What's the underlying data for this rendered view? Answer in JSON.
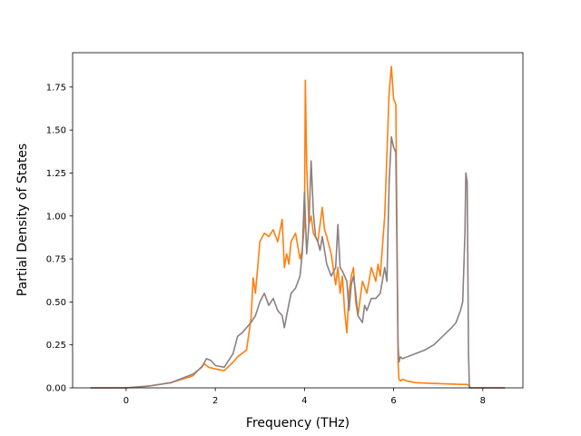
{
  "chart_data": {
    "type": "line",
    "title": "",
    "xlabel": "Frequency (THz)",
    "ylabel": "Partial Density of States",
    "xlim": [
      -1.2,
      8.9
    ],
    "ylim": [
      0,
      1.95
    ],
    "xticks": [
      0,
      2,
      4,
      6,
      8
    ],
    "yticks": [
      0.0,
      0.25,
      0.5,
      0.75,
      1.0,
      1.25,
      1.5,
      1.75
    ],
    "ytick_labels": [
      "0.00",
      "0.25",
      "0.50",
      "0.75",
      "1.00",
      "1.25",
      "1.50",
      "1.75"
    ],
    "grid": false,
    "legend": "none",
    "series": [
      {
        "color": "#ff7f0e",
        "x": [
          -0.8,
          0.0,
          0.5,
          1.0,
          1.5,
          1.75,
          1.85,
          2.0,
          2.2,
          2.4,
          2.5,
          2.7,
          2.8,
          2.85,
          2.9,
          3.0,
          3.1,
          3.2,
          3.3,
          3.4,
          3.5,
          3.55,
          3.6,
          3.65,
          3.7,
          3.8,
          3.9,
          3.95,
          4.0,
          4.02,
          4.05,
          4.1,
          4.15,
          4.2,
          4.3,
          4.4,
          4.45,
          4.5,
          4.6,
          4.7,
          4.75,
          4.8,
          4.85,
          4.9,
          4.95,
          5.0,
          5.05,
          5.1,
          5.15,
          5.2,
          5.3,
          5.4,
          5.5,
          5.6,
          5.65,
          5.7,
          5.8,
          5.9,
          5.95,
          6.0,
          6.05,
          6.1,
          6.12,
          6.15,
          6.2,
          6.3,
          6.5,
          7.0,
          7.5,
          7.65,
          7.7,
          7.72,
          8.0,
          8.5
        ],
        "values": [
          0.0,
          0.0,
          0.01,
          0.03,
          0.07,
          0.14,
          0.12,
          0.11,
          0.1,
          0.15,
          0.18,
          0.22,
          0.4,
          0.64,
          0.55,
          0.85,
          0.9,
          0.88,
          0.92,
          0.85,
          0.98,
          0.7,
          0.78,
          0.72,
          0.85,
          0.9,
          0.75,
          0.8,
          0.95,
          1.79,
          1.3,
          0.95,
          1.0,
          0.9,
          0.85,
          1.05,
          0.92,
          0.88,
          0.78,
          0.6,
          0.7,
          0.55,
          0.65,
          0.45,
          0.32,
          0.55,
          0.65,
          0.7,
          0.5,
          0.42,
          0.62,
          0.55,
          0.7,
          0.62,
          0.72,
          0.65,
          1.0,
          1.72,
          1.87,
          1.68,
          1.65,
          0.15,
          0.05,
          0.04,
          0.05,
          0.04,
          0.03,
          0.025,
          0.02,
          0.02,
          0.01,
          0.0,
          0.0,
          0.0
        ]
      },
      {
        "color": "#8c7f80",
        "x": [
          -0.8,
          0.0,
          0.5,
          1.0,
          1.5,
          1.7,
          1.8,
          1.9,
          2.0,
          2.2,
          2.4,
          2.5,
          2.6,
          2.7,
          2.8,
          2.9,
          3.0,
          3.1,
          3.2,
          3.3,
          3.4,
          3.5,
          3.55,
          3.6,
          3.7,
          3.8,
          3.9,
          3.95,
          4.0,
          4.05,
          4.1,
          4.15,
          4.2,
          4.25,
          4.3,
          4.35,
          4.4,
          4.5,
          4.6,
          4.7,
          4.75,
          4.8,
          4.85,
          4.9,
          4.95,
          5.0,
          5.05,
          5.1,
          5.15,
          5.2,
          5.3,
          5.35,
          5.4,
          5.5,
          5.6,
          5.7,
          5.8,
          5.85,
          5.9,
          5.95,
          6.0,
          6.05,
          6.1,
          6.12,
          6.15,
          6.2,
          6.3,
          6.5,
          6.7,
          6.9,
          7.1,
          7.3,
          7.4,
          7.5,
          7.55,
          7.6,
          7.62,
          7.65,
          7.68,
          7.7,
          8.0,
          8.5
        ],
        "values": [
          0.0,
          0.0,
          0.01,
          0.03,
          0.08,
          0.12,
          0.17,
          0.16,
          0.13,
          0.12,
          0.2,
          0.3,
          0.32,
          0.35,
          0.38,
          0.42,
          0.5,
          0.55,
          0.48,
          0.52,
          0.45,
          0.42,
          0.35,
          0.42,
          0.55,
          0.58,
          0.65,
          0.78,
          1.14,
          0.78,
          0.95,
          1.32,
          1.02,
          0.88,
          0.85,
          0.8,
          0.88,
          0.72,
          0.65,
          0.7,
          0.95,
          0.7,
          0.68,
          0.65,
          0.62,
          0.45,
          0.6,
          0.65,
          0.55,
          0.42,
          0.38,
          0.48,
          0.45,
          0.52,
          0.52,
          0.55,
          0.7,
          0.62,
          1.2,
          1.46,
          1.4,
          1.37,
          0.25,
          0.15,
          0.18,
          0.17,
          0.18,
          0.2,
          0.22,
          0.25,
          0.3,
          0.35,
          0.38,
          0.45,
          0.5,
          0.9,
          1.25,
          1.2,
          0.2,
          0.0,
          0.0,
          0.0
        ]
      }
    ]
  }
}
